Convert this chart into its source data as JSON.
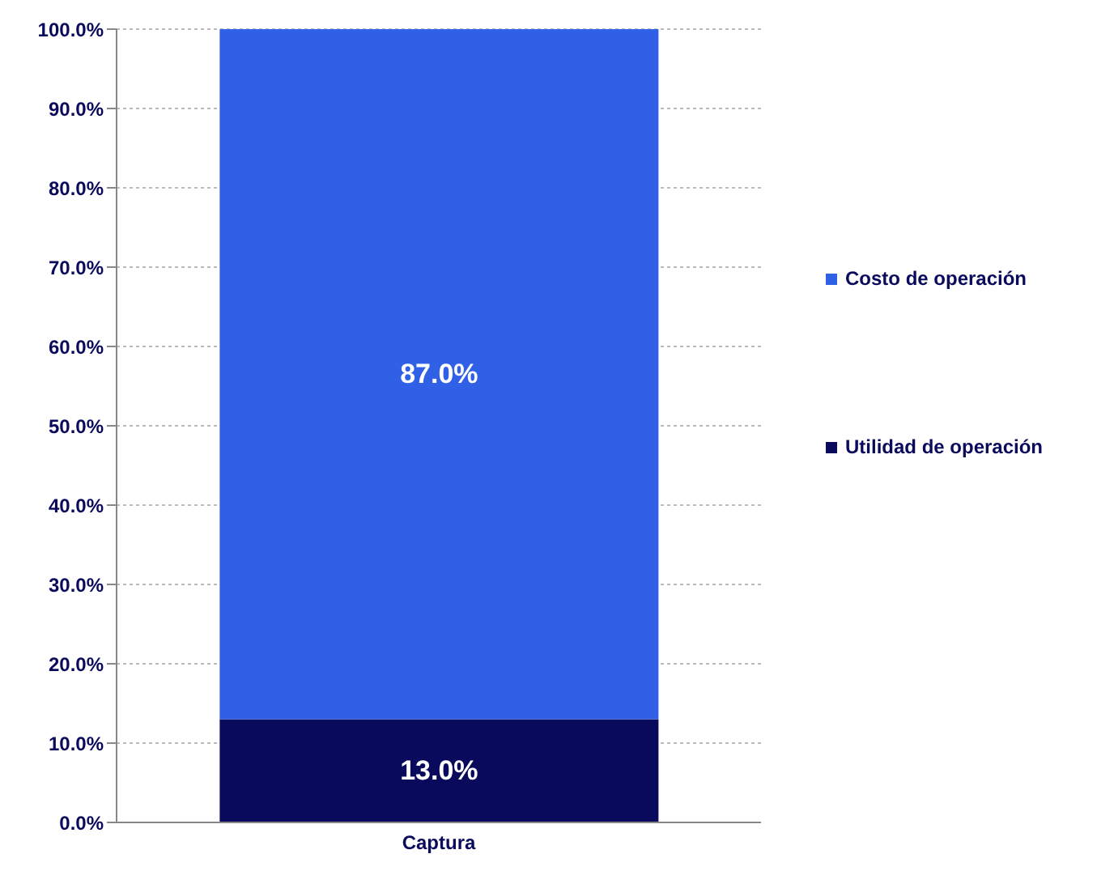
{
  "chart_data": {
    "type": "bar",
    "stacked": true,
    "categories": [
      "Captura"
    ],
    "series": [
      {
        "name": "Utilidad de operación",
        "color": "#0a0a5c",
        "values": [
          13.0
        ],
        "value_labels": [
          "13.0%"
        ]
      },
      {
        "name": "Costo de operación",
        "color": "#2f60e6",
        "values": [
          87.0
        ],
        "value_labels": [
          "87.0%"
        ]
      }
    ],
    "ylim": [
      0,
      100
    ],
    "yticks": [
      {
        "value": 0,
        "label": "0.0%"
      },
      {
        "value": 10,
        "label": "10.0%"
      },
      {
        "value": 20,
        "label": "20.0%"
      },
      {
        "value": 30,
        "label": "30.0%"
      },
      {
        "value": 40,
        "label": "40.0%"
      },
      {
        "value": 50,
        "label": "50.0%"
      },
      {
        "value": 60,
        "label": "60.0%"
      },
      {
        "value": 70,
        "label": "70.0%"
      },
      {
        "value": 80,
        "label": "80.0%"
      },
      {
        "value": 90,
        "label": "90.0%"
      },
      {
        "value": 100,
        "label": "100.0%"
      }
    ],
    "grid": "y",
    "legend": "right"
  }
}
